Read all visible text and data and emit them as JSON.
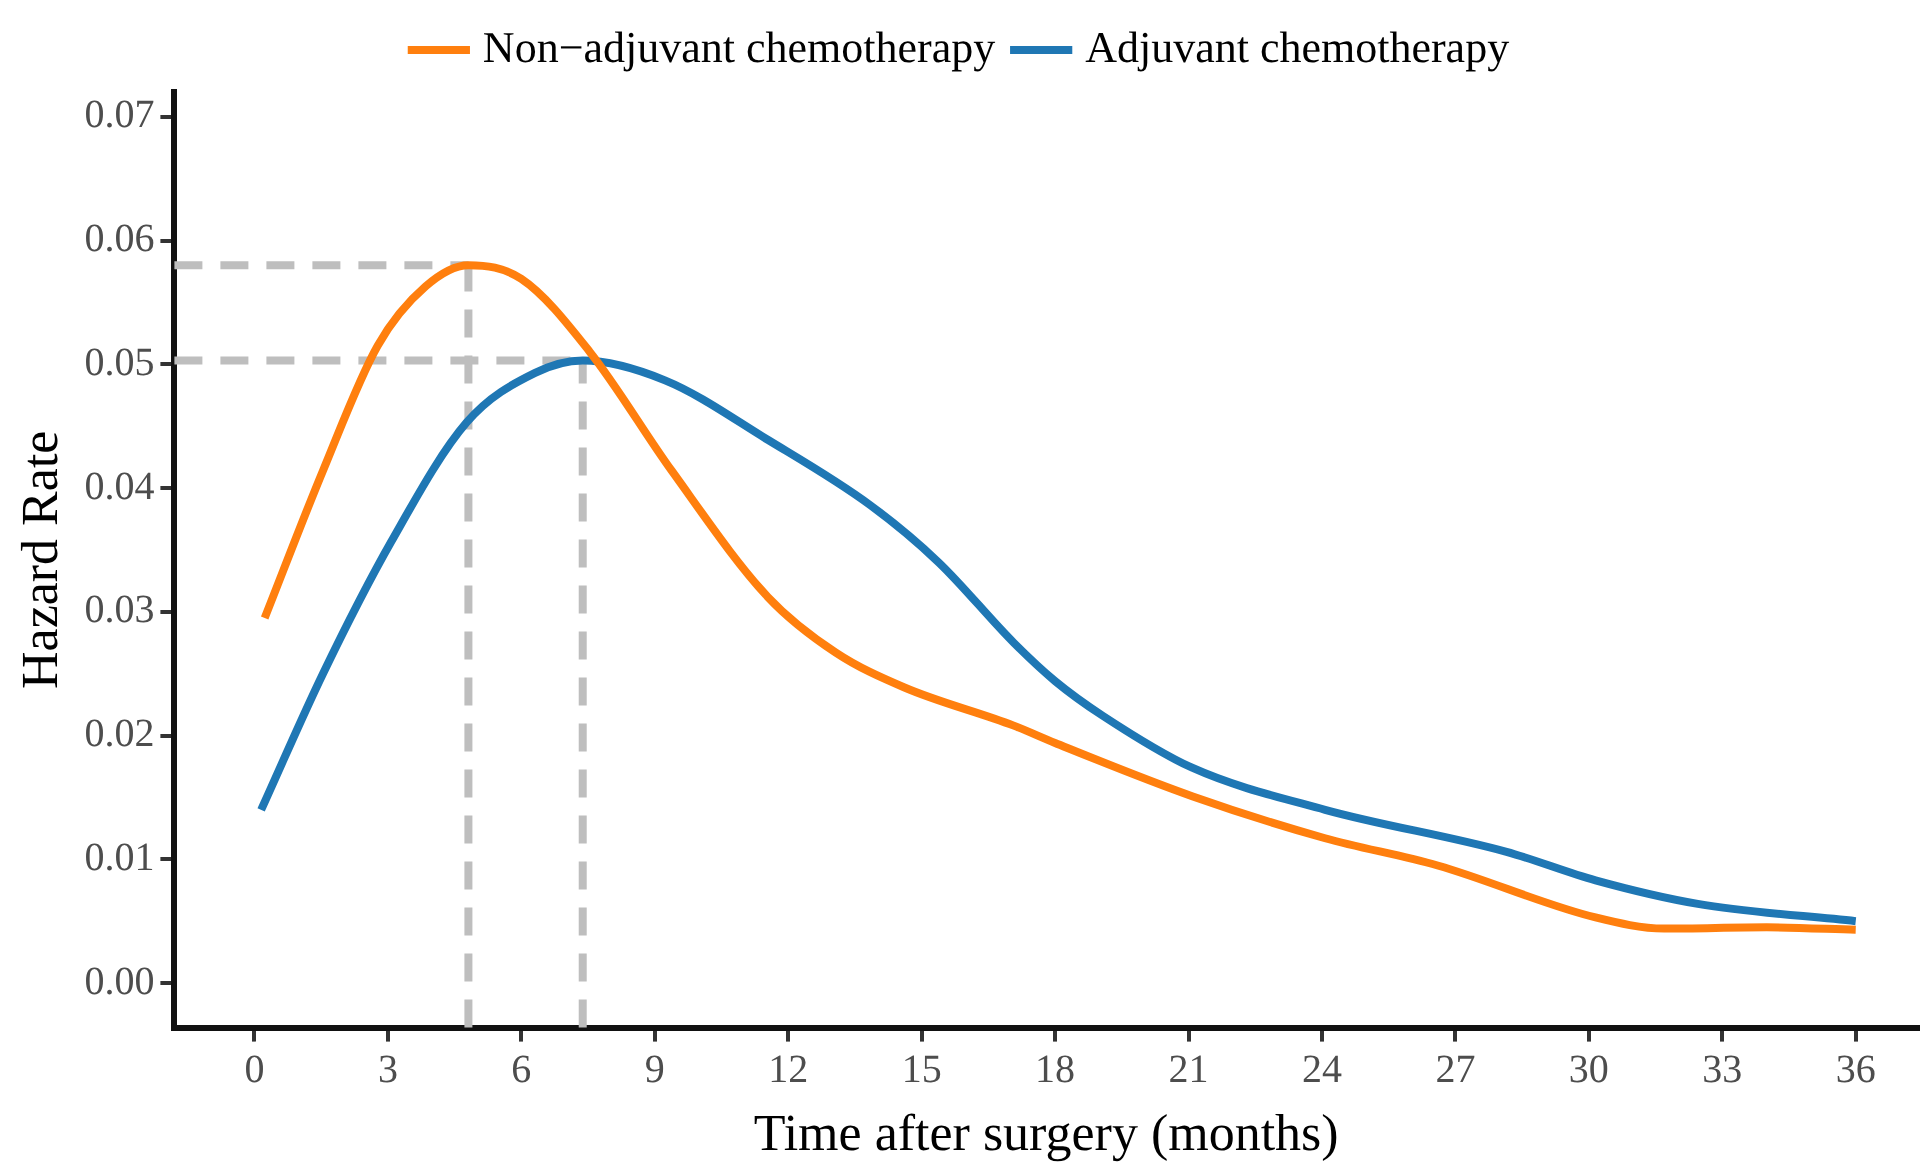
{
  "chart_data": {
    "type": "line",
    "xlabel": "Time after surgery (months)",
    "ylabel": "Hazard Rate",
    "legend": "top",
    "grid": false,
    "marker": "none",
    "line_style": "solid",
    "xlim": [
      -1.8,
      37.4
    ],
    "xticks": [
      0,
      3,
      6,
      9,
      12,
      15,
      18,
      21,
      24,
      27,
      30,
      33,
      36
    ],
    "ylim": [
      -0.0036,
      0.072
    ],
    "yticks": [
      {
        "value": 0,
        "label": "0.00"
      },
      {
        "value": 0.01,
        "label": "0.01"
      },
      {
        "value": 0.02,
        "label": "0.02"
      },
      {
        "value": 0.03,
        "label": "0.03"
      },
      {
        "value": 0.04,
        "label": "0.04"
      },
      {
        "value": 0.05,
        "label": "0.05"
      },
      {
        "value": 0.06,
        "label": "0.06"
      },
      {
        "value": 0.07,
        "label": "0.07"
      }
    ],
    "series": [
      {
        "name": "Non−adjuvant chemotherapy",
        "color": "#ff7f0e",
        "x": [
          0.23,
          1.54,
          2.77,
          3.85,
          4.81,
          6.0,
          7.54,
          9.38,
          11.54,
          13.07,
          14.6,
          17.07,
          18.0,
          21.08,
          24.07,
          26.6,
          30.15,
          31.69,
          34.0,
          36.0
        ],
        "values": [
          0.0295,
          0.0414,
          0.0515,
          0.0563,
          0.058,
          0.0569,
          0.051,
          0.0414,
          0.0312,
          0.0267,
          0.0239,
          0.0208,
          0.0194,
          0.0151,
          0.0117,
          0.0095,
          0.0053,
          0.0044,
          0.0045,
          0.0043
        ]
      },
      {
        "name": "Adjuvant chemotherapy",
        "color": "#1f77b4",
        "x": [
          0.15,
          1.54,
          3.08,
          4.77,
          6.31,
          7.38,
          9.23,
          11.54,
          13.85,
          15.38,
          17.07,
          18.0,
          19.07,
          21.08,
          24.07,
          28.15,
          30.15,
          32.45,
          36.0
        ],
        "values": [
          0.014,
          0.025,
          0.0357,
          0.0453,
          0.0493,
          0.0503,
          0.0487,
          0.0439,
          0.0386,
          0.034,
          0.0275,
          0.0244,
          0.0216,
          0.0174,
          0.014,
          0.0106,
          0.0083,
          0.0064,
          0.005
        ]
      }
    ],
    "ref_lines": [
      {
        "axis": "x",
        "value": 4.81,
        "color": "#bebebe",
        "line_style": "dashed"
      },
      {
        "axis": "y",
        "value": 0.058,
        "color": "#bebebe",
        "line_style": "dashed"
      },
      {
        "axis": "x",
        "value": 7.38,
        "color": "#bebebe",
        "line_style": "dashed"
      },
      {
        "axis": "y",
        "value": 0.0503,
        "color": "#bebebe",
        "line_style": "dashed"
      }
    ]
  }
}
